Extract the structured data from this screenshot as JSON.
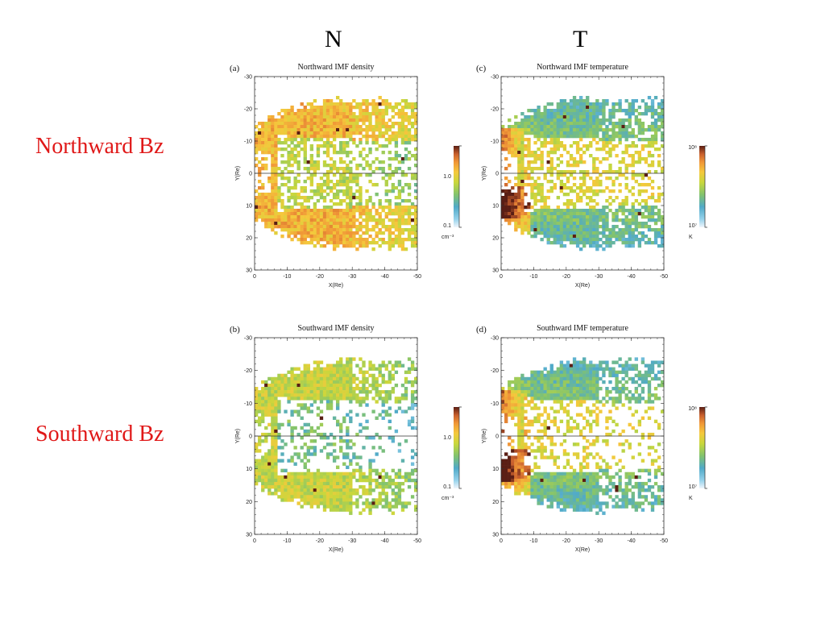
{
  "headers": {
    "n": "N",
    "t": "T"
  },
  "rows": {
    "north": "Northward Bz",
    "south": "Southward Bz"
  },
  "colors": {
    "row_label": "#e01818"
  },
  "chart_data": [
    {
      "type": "heatmap",
      "letter": "(a)",
      "title": "Northward IMF density",
      "xlabel": "X(Re)",
      "ylabel": "Y(Re)",
      "xlim": [
        0,
        -50
      ],
      "ylim": [
        -30,
        30
      ],
      "xticks": [
        "0",
        "-10",
        "-20",
        "-30",
        "-40",
        "-50"
      ],
      "yticks": [
        "-30",
        "-20",
        "-10",
        "0",
        "10",
        "20",
        "30"
      ],
      "bin_size_re": 1,
      "field": "density",
      "imf": "northward",
      "colorbar": {
        "scale": "log",
        "range": [
          0.1,
          2.0
        ],
        "ticks": [
          "1.0",
          "0.1"
        ],
        "unit": "cm⁻³"
      },
      "typical_value": "~1 cm⁻³ (orange/yellow) in flanks, lower (green/blue) near tail center"
    },
    {
      "type": "heatmap",
      "letter": "(b)",
      "title": "Southward IMF density",
      "xlabel": "X(Re)",
      "ylabel": "Y(Re)",
      "xlim": [
        0,
        -50
      ],
      "ylim": [
        -30,
        30
      ],
      "xticks": [
        "0",
        "-10",
        "-20",
        "-30",
        "-40",
        "-50"
      ],
      "yticks": [
        "-30",
        "-20",
        "-10",
        "0",
        "10",
        "20",
        "30"
      ],
      "bin_size_re": 1,
      "field": "density",
      "imf": "southward",
      "colorbar": {
        "scale": "log",
        "range": [
          0.1,
          2.0
        ],
        "ticks": [
          "1.0",
          "0.1"
        ],
        "unit": "cm⁻³"
      },
      "typical_value": "~0.5–1 cm⁻³ (yellow/green), more sparse coverage beyond X=-25"
    },
    {
      "type": "heatmap",
      "letter": "(c)",
      "title": "Northward IMF temperature",
      "xlabel": "X(Re)",
      "ylabel": "Y(Re)",
      "xlim": [
        0,
        -50
      ],
      "ylim": [
        -30,
        30
      ],
      "xticks": [
        "0",
        "-10",
        "-20",
        "-30",
        "-40",
        "-50"
      ],
      "yticks": [
        "-30",
        "-20",
        "-10",
        "0",
        "10",
        "20",
        "30"
      ],
      "bin_size_re": 1,
      "field": "temperature",
      "imf": "northward",
      "colorbar": {
        "scale": "log",
        "range": [
          10000000,
          1000000000
        ],
        "ticks": [
          "10⁸",
          "10⁷"
        ],
        "unit": "K"
      },
      "typical_value": "hot (red/brown) near X=0–10 on dusk side, cool (blue/green) on flanks"
    },
    {
      "type": "heatmap",
      "letter": "(d)",
      "title": "Southward IMF temperature",
      "xlabel": "X(Re)",
      "ylabel": "Y(Re)",
      "xlim": [
        0,
        -50
      ],
      "ylim": [
        -30,
        30
      ],
      "xticks": [
        "0",
        "-10",
        "-20",
        "-30",
        "-40",
        "-50"
      ],
      "yticks": [
        "-30",
        "-20",
        "-10",
        "0",
        "10",
        "20",
        "30"
      ],
      "bin_size_re": 1,
      "field": "temperature",
      "imf": "southward",
      "colorbar": {
        "scale": "log",
        "range": [
          10000000,
          1000000000
        ],
        "ticks": [
          "10⁸",
          "10⁷"
        ],
        "unit": "K"
      },
      "typical_value": "hot (orange/red) along inner boundary and center, cool (blue) on flanks"
    }
  ]
}
